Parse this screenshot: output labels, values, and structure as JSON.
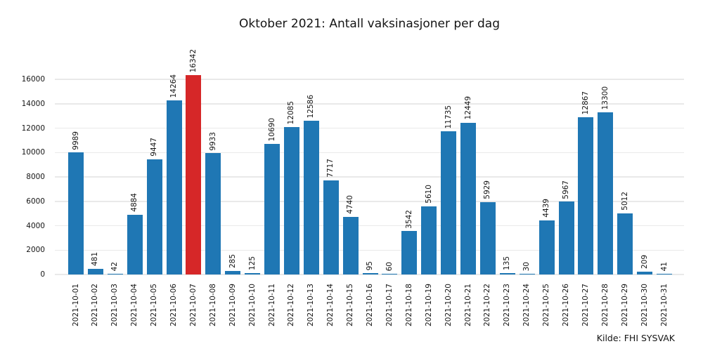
{
  "chart_data": {
    "type": "bar",
    "title": "Oktober 2021: Antall vaksinasjoner per dag",
    "source": "Kilde: FHI SYSVAK",
    "categories": [
      "2021-10-01",
      "2021-10-02",
      "2021-10-03",
      "2021-10-04",
      "2021-10-05",
      "2021-10-06",
      "2021-10-07",
      "2021-10-08",
      "2021-10-09",
      "2021-10-10",
      "2021-10-11",
      "2021-10-12",
      "2021-10-13",
      "2021-10-14",
      "2021-10-15",
      "2021-10-16",
      "2021-10-17",
      "2021-10-18",
      "2021-10-19",
      "2021-10-20",
      "2021-10-21",
      "2021-10-22",
      "2021-10-23",
      "2021-10-24",
      "2021-10-25",
      "2021-10-26",
      "2021-10-27",
      "2021-10-28",
      "2021-10-29",
      "2021-10-30",
      "2021-10-31"
    ],
    "values": [
      9989,
      481,
      42,
      4884,
      9447,
      14264,
      16342,
      9933,
      285,
      125,
      10690,
      12085,
      12586,
      7717,
      4740,
      95,
      60,
      3542,
      5610,
      11735,
      12449,
      5929,
      135,
      30,
      4439,
      5967,
      12867,
      13300,
      5012,
      209,
      41
    ],
    "value_labels": true,
    "label_rotation": 90,
    "bar_color": "#1f77b4",
    "highlight": {
      "category": "2021-10-07",
      "index": 6,
      "color": "#d62728"
    },
    "xlabel": "",
    "ylabel": "",
    "ylim": [
      0,
      16800
    ],
    "yticks": [
      0,
      2000,
      4000,
      6000,
      8000,
      10000,
      12000,
      14000,
      16000
    ],
    "grid": true,
    "legend_position": "none"
  }
}
